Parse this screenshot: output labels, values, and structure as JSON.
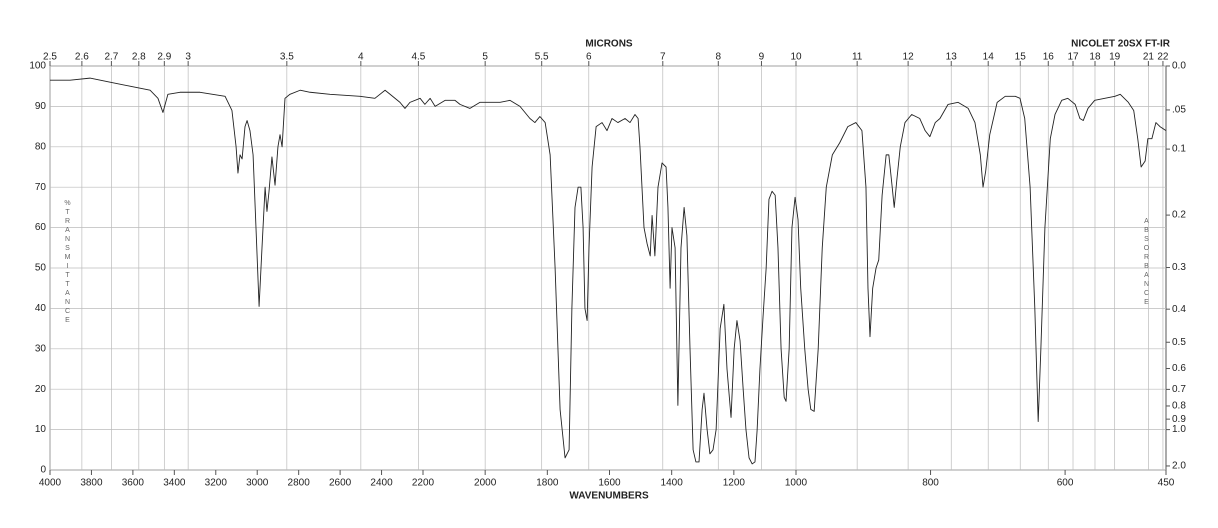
{
  "chart_data": {
    "type": "line",
    "title": "NICOLET 20SX FT-IR",
    "xlabel": "WAVENUMBERS",
    "ylabel": "%TRANSMITTANCE",
    "x2label": "MICRONS",
    "y2label": "ABSORBANCE",
    "xlim": [
      4000,
      450
    ],
    "ylim": [
      0,
      100
    ],
    "xticks": [
      4000,
      3800,
      3600,
      3400,
      3200,
      3000,
      2800,
      2600,
      2400,
      2200,
      2000,
      1800,
      1600,
      1400,
      1200,
      1000,
      800,
      600,
      450
    ],
    "yticks": [
      0,
      10,
      20,
      30,
      40,
      50,
      60,
      70,
      80,
      90,
      100
    ],
    "x2ticks": [
      2.5,
      2.6,
      2.7,
      2.8,
      2.9,
      3,
      3.5,
      4,
      4.5,
      5,
      5.5,
      6,
      7,
      8,
      9,
      10,
      11,
      12,
      13,
      14,
      15,
      16,
      17,
      18,
      19,
      21,
      22
    ],
    "y2ticks": [
      {
        "value": 0,
        "label": "0.0"
      },
      {
        "value": 0.05,
        "label": ".05"
      },
      {
        "value": 0.1,
        "label": "0.1"
      },
      {
        "value": 0.2,
        "label": "0.2"
      },
      {
        "value": 0.3,
        "label": "0.3"
      },
      {
        "value": 0.4,
        "label": "0.4"
      },
      {
        "value": 0.5,
        "label": "0.5"
      },
      {
        "value": 0.6,
        "label": "0.6"
      },
      {
        "value": 0.7,
        "label": "0.7"
      },
      {
        "value": 0.8,
        "label": "0.8"
      },
      {
        "value": 0.9,
        "label": "0.9"
      },
      {
        "value": 1,
        "label": "1.0"
      },
      {
        "value": 2,
        "label": "2.0"
      }
    ],
    "grid": true,
    "color": "#222222",
    "x": [
      4000,
      3903,
      3807,
      3710,
      3614,
      3517,
      3479,
      3455,
      3431,
      3373,
      3276,
      3155,
      3122,
      3102,
      3093,
      3083,
      3073,
      3059,
      3049,
      3035,
      3020,
      3006,
      2991,
      2977,
      2962,
      2953,
      2943,
      2929,
      2914,
      2900,
      2890,
      2880,
      2866,
      2842,
      2793,
      2745,
      2649,
      2504,
      2432,
      2383,
      2359,
      2311,
      2287,
      2263,
      2214,
      2194,
      2177,
      2161,
      2129,
      2097,
      2081,
      2049,
      2017,
      1952,
      1920,
      1888,
      1856,
      1840,
      1824,
      1807,
      1791,
      1775,
      1759,
      1743,
      1730,
      1721,
      1711,
      1701,
      1692,
      1685,
      1679,
      1672,
      1666,
      1656,
      1643,
      1624,
      1608,
      1592,
      1573,
      1550,
      1534,
      1518,
      1508,
      1502,
      1489,
      1479,
      1469,
      1463,
      1454,
      1444,
      1431,
      1418,
      1412,
      1405,
      1399,
      1389,
      1380,
      1370,
      1360,
      1351,
      1341,
      1331,
      1322,
      1312,
      1302,
      1296,
      1286,
      1277,
      1267,
      1257,
      1244,
      1232,
      1222,
      1209,
      1199,
      1190,
      1180,
      1170,
      1161,
      1151,
      1141,
      1132,
      1125,
      1116,
      1106,
      1096,
      1087,
      1077,
      1067,
      1058,
      1048,
      1038,
      1032,
      1022,
      1013,
      1003,
      997,
      993,
      987,
      982,
      978,
      973,
      967,
      961,
      955,
      946,
      935,
      923,
      911,
      902,
      896,
      893,
      890,
      886,
      881,
      877,
      872,
      866,
      862,
      857,
      854,
      850,
      845,
      838,
      828,
      816,
      808,
      801,
      793,
      786,
      774,
      759,
      744,
      734,
      726,
      722,
      718,
      712,
      701,
      689,
      674,
      667,
      660,
      652,
      645,
      640,
      636,
      630,
      622,
      615,
      605,
      596,
      585,
      578,
      573,
      566,
      556,
      541,
      526,
      518,
      506,
      498,
      492,
      487,
      481,
      477,
      471,
      465,
      459,
      450
    ],
    "values": [
      96.5,
      96.5,
      97,
      96,
      95,
      94,
      92,
      88.5,
      93,
      93.5,
      93.5,
      92.5,
      89,
      80,
      73.5,
      78,
      77,
      85,
      86.5,
      84,
      78,
      60,
      40.5,
      55,
      70,
      64,
      69,
      77.5,
      70.5,
      80,
      83,
      80,
      92,
      93,
      94,
      93.5,
      93,
      92.5,
      92,
      94,
      93,
      91,
      89.5,
      91,
      92,
      90.5,
      92,
      90,
      91.5,
      91.5,
      90.5,
      89.5,
      91,
      91,
      91.5,
      90,
      87,
      86,
      87.5,
      86,
      78,
      50,
      15,
      3,
      5,
      40,
      65,
      70,
      70,
      60,
      40,
      37,
      55,
      75,
      85,
      86,
      84,
      87,
      86,
      87,
      86,
      88,
      87,
      80,
      60,
      56,
      53,
      63,
      53,
      70,
      76,
      75,
      65,
      45,
      60,
      55,
      16,
      55,
      65,
      58,
      30,
      5,
      2,
      2,
      15,
      19,
      10,
      4,
      5,
      10,
      35,
      41,
      25,
      13,
      30,
      37,
      32,
      20,
      10,
      3,
      1.5,
      2,
      10,
      25,
      38,
      50,
      67,
      69,
      68,
      55,
      30,
      18,
      17,
      30,
      60,
      67.5,
      62,
      45,
      30,
      20,
      15,
      14.5,
      30,
      55,
      70,
      78,
      81,
      85,
      86,
      84,
      70,
      45,
      33,
      45,
      50,
      52,
      68,
      78,
      78,
      70,
      65,
      72,
      80,
      86,
      88,
      87,
      84,
      82.5,
      86,
      87,
      90.5,
      91,
      89.5,
      86,
      78,
      70,
      74,
      83,
      91,
      92.5,
      92.5,
      92,
      87,
      70,
      40,
      12,
      30,
      60,
      82,
      88,
      91.5,
      92,
      90.5,
      87,
      86.5,
      89.5,
      91.5,
      92,
      92.5,
      93,
      91,
      89,
      82,
      75,
      76.5,
      82,
      82,
      86,
      85,
      84
    ]
  }
}
